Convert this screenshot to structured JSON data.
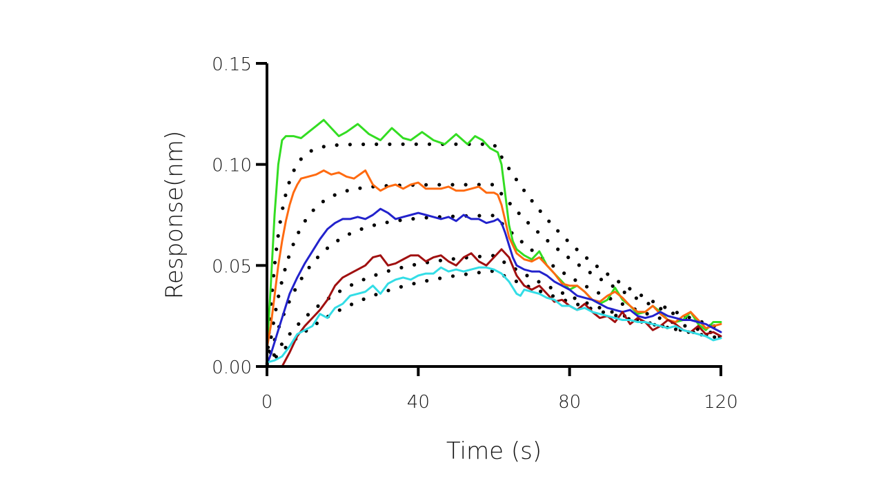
{
  "chart_data": {
    "type": "line",
    "title": "",
    "xlabel": "Time (s)",
    "ylabel": "Response(nm)",
    "xlim": [
      0,
      120
    ],
    "ylim": [
      0,
      0.15
    ],
    "xticks": [
      0,
      40,
      80,
      120
    ],
    "xtick_labels": [
      "0",
      "40",
      "80",
      "120"
    ],
    "yticks": [
      0,
      0.05,
      0.1,
      0.15
    ],
    "ytick_labels": [
      "0.00",
      "0.05",
      "0.10",
      "0.15"
    ],
    "grid": false,
    "legend": "none",
    "series": [
      {
        "name": "green",
        "color": "#33dd22",
        "style": "solid",
        "x": [
          0,
          1,
          2,
          3,
          4,
          5,
          7,
          9,
          11,
          13,
          15,
          17,
          19,
          21,
          24,
          27,
          30,
          33,
          36,
          38,
          41,
          44,
          47,
          50,
          53,
          55,
          57,
          59,
          61,
          62,
          63,
          64,
          65,
          66,
          68,
          70,
          72,
          74,
          76,
          78,
          80,
          82,
          84,
          86,
          88,
          90,
          92,
          94,
          96,
          98,
          100,
          102,
          104,
          106,
          108,
          110,
          112,
          114,
          116,
          118,
          120
        ],
        "y": [
          0.008,
          0.04,
          0.075,
          0.1,
          0.112,
          0.114,
          0.114,
          0.113,
          0.116,
          0.119,
          0.122,
          0.118,
          0.114,
          0.116,
          0.12,
          0.115,
          0.112,
          0.118,
          0.113,
          0.112,
          0.116,
          0.112,
          0.11,
          0.115,
          0.11,
          0.114,
          0.112,
          0.108,
          0.106,
          0.1,
          0.085,
          0.07,
          0.062,
          0.058,
          0.055,
          0.053,
          0.057,
          0.05,
          0.046,
          0.042,
          0.038,
          0.04,
          0.037,
          0.033,
          0.031,
          0.033,
          0.039,
          0.033,
          0.03,
          0.026,
          0.027,
          0.03,
          0.027,
          0.023,
          0.022,
          0.023,
          0.027,
          0.021,
          0.018,
          0.022,
          0.022
        ]
      },
      {
        "name": "orange",
        "color": "#ff6a10",
        "style": "solid",
        "x": [
          0,
          1,
          2,
          3,
          4,
          5,
          6,
          7,
          8,
          9,
          11,
          13,
          15,
          17,
          19,
          21,
          23,
          26,
          28,
          30,
          32,
          34,
          36,
          38,
          40,
          42,
          44,
          46,
          48,
          50,
          52,
          54,
          56,
          58,
          60,
          61,
          62,
          63,
          64,
          65,
          66,
          68,
          70,
          72,
          74,
          76,
          78,
          80,
          82,
          84,
          86,
          88,
          90,
          92,
          94,
          96,
          98,
          100,
          102,
          104,
          106,
          108,
          110,
          112,
          114,
          116,
          118,
          120
        ],
        "y": [
          0.009,
          0.02,
          0.035,
          0.05,
          0.062,
          0.072,
          0.08,
          0.086,
          0.09,
          0.093,
          0.094,
          0.095,
          0.097,
          0.095,
          0.096,
          0.094,
          0.093,
          0.097,
          0.09,
          0.087,
          0.089,
          0.09,
          0.088,
          0.09,
          0.091,
          0.088,
          0.088,
          0.088,
          0.089,
          0.087,
          0.087,
          0.088,
          0.089,
          0.086,
          0.086,
          0.085,
          0.08,
          0.072,
          0.064,
          0.06,
          0.056,
          0.053,
          0.052,
          0.054,
          0.05,
          0.046,
          0.041,
          0.04,
          0.04,
          0.037,
          0.033,
          0.032,
          0.035,
          0.037,
          0.034,
          0.03,
          0.027,
          0.027,
          0.03,
          0.026,
          0.023,
          0.022,
          0.025,
          0.027,
          0.023,
          0.019,
          0.02,
          0.021
        ]
      },
      {
        "name": "blue",
        "color": "#2222cc",
        "style": "solid",
        "x": [
          0,
          1,
          2,
          3,
          4,
          5,
          6,
          8,
          10,
          12,
          14,
          16,
          18,
          20,
          22,
          24,
          26,
          28,
          30,
          32,
          34,
          36,
          38,
          40,
          42,
          44,
          46,
          48,
          50,
          52,
          54,
          56,
          58,
          60,
          61,
          62,
          63,
          64,
          65,
          66,
          68,
          70,
          72,
          74,
          76,
          78,
          80,
          82,
          84,
          86,
          88,
          90,
          92,
          94,
          96,
          98,
          100,
          102,
          104,
          106,
          108,
          110,
          112,
          114,
          116,
          118,
          120
        ],
        "y": [
          0.001,
          0.006,
          0.012,
          0.018,
          0.024,
          0.03,
          0.036,
          0.044,
          0.051,
          0.057,
          0.063,
          0.068,
          0.071,
          0.073,
          0.073,
          0.074,
          0.073,
          0.075,
          0.078,
          0.076,
          0.073,
          0.074,
          0.075,
          0.076,
          0.075,
          0.074,
          0.073,
          0.074,
          0.072,
          0.075,
          0.073,
          0.073,
          0.071,
          0.072,
          0.073,
          0.071,
          0.066,
          0.06,
          0.054,
          0.05,
          0.048,
          0.047,
          0.047,
          0.045,
          0.042,
          0.04,
          0.038,
          0.035,
          0.034,
          0.033,
          0.031,
          0.029,
          0.028,
          0.027,
          0.028,
          0.025,
          0.024,
          0.025,
          0.027,
          0.025,
          0.024,
          0.023,
          0.023,
          0.022,
          0.021,
          0.019,
          0.017
        ]
      },
      {
        "name": "dark-red",
        "color": "#a01010",
        "style": "solid",
        "x": [
          4,
          6,
          8,
          10,
          12,
          14,
          16,
          18,
          20,
          22,
          24,
          26,
          28,
          30,
          32,
          34,
          36,
          38,
          40,
          42,
          44,
          46,
          48,
          50,
          52,
          54,
          56,
          58,
          60,
          62,
          64,
          66,
          68,
          70,
          72,
          74,
          76,
          78,
          80,
          82,
          84,
          86,
          88,
          90,
          92,
          94,
          96,
          98,
          100,
          102,
          104,
          106,
          108,
          110,
          112,
          114,
          116,
          118,
          120
        ],
        "y": [
          0.0,
          0.007,
          0.015,
          0.02,
          0.024,
          0.028,
          0.033,
          0.04,
          0.044,
          0.046,
          0.048,
          0.05,
          0.054,
          0.055,
          0.05,
          0.051,
          0.053,
          0.055,
          0.055,
          0.052,
          0.054,
          0.055,
          0.052,
          0.05,
          0.054,
          0.056,
          0.052,
          0.05,
          0.054,
          0.058,
          0.054,
          0.045,
          0.04,
          0.038,
          0.04,
          0.036,
          0.032,
          0.033,
          0.03,
          0.028,
          0.031,
          0.027,
          0.024,
          0.025,
          0.022,
          0.027,
          0.021,
          0.024,
          0.022,
          0.018,
          0.02,
          0.023,
          0.021,
          0.018,
          0.017,
          0.02,
          0.016,
          0.017,
          0.015
        ]
      },
      {
        "name": "cyan",
        "color": "#33dde6",
        "style": "solid",
        "x": [
          0,
          2,
          4,
          6,
          8,
          10,
          12,
          14,
          16,
          18,
          20,
          22,
          24,
          26,
          28,
          30,
          32,
          34,
          36,
          38,
          40,
          42,
          44,
          46,
          48,
          50,
          52,
          54,
          56,
          58,
          60,
          62,
          64,
          66,
          67,
          68,
          70,
          72,
          74,
          76,
          78,
          80,
          82,
          84,
          86,
          88,
          90,
          92,
          94,
          96,
          98,
          100,
          102,
          104,
          106,
          108,
          110,
          112,
          114,
          116,
          118,
          120
        ],
        "y": [
          0.002,
          0.003,
          0.005,
          0.01,
          0.016,
          0.018,
          0.02,
          0.026,
          0.024,
          0.029,
          0.031,
          0.035,
          0.036,
          0.037,
          0.04,
          0.036,
          0.041,
          0.043,
          0.044,
          0.043,
          0.045,
          0.046,
          0.046,
          0.049,
          0.047,
          0.048,
          0.047,
          0.048,
          0.049,
          0.049,
          0.048,
          0.046,
          0.042,
          0.036,
          0.035,
          0.038,
          0.037,
          0.036,
          0.034,
          0.033,
          0.03,
          0.03,
          0.028,
          0.029,
          0.027,
          0.026,
          0.025,
          0.024,
          0.023,
          0.023,
          0.022,
          0.022,
          0.021,
          0.02,
          0.019,
          0.02,
          0.018,
          0.017,
          0.016,
          0.015,
          0.013,
          0.014
        ]
      },
      {
        "name": "fit-1",
        "color": "#000000",
        "style": "dotted",
        "plateau": 0.11,
        "kobs": 0.3,
        "kd": 0.045,
        "t_switch": 60,
        "t_end": 120
      },
      {
        "name": "fit-2",
        "color": "#000000",
        "style": "dotted",
        "plateau": 0.09,
        "kobs": 0.16,
        "kd": 0.04,
        "t_switch": 60,
        "t_end": 120
      },
      {
        "name": "fit-3",
        "color": "#000000",
        "style": "dotted",
        "plateau": 0.075,
        "kobs": 0.095,
        "kd": 0.04,
        "t_switch": 60,
        "t_end": 120
      },
      {
        "name": "fit-4",
        "color": "#000000",
        "style": "dotted",
        "plateau": 0.057,
        "kobs": 0.055,
        "kd": 0.035,
        "t_switch": 60,
        "t_end": 120
      },
      {
        "name": "fit-5",
        "color": "#000000",
        "style": "dotted",
        "plateau": 0.052,
        "kobs": 0.04,
        "kd": 0.03,
        "t_switch": 60,
        "t_end": 120
      }
    ]
  }
}
